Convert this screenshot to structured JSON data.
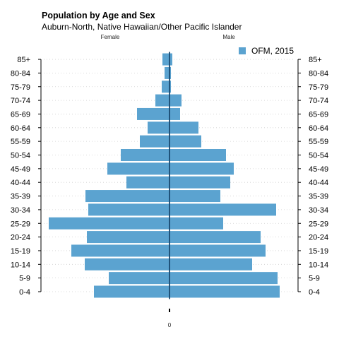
{
  "chart_data": {
    "type": "bar",
    "title": "Population by Age and Sex",
    "subtitle": "Auburn-North, Native Hawaiian/Other Pacific Islander",
    "left_side_label": "Female",
    "right_side_label": "Male",
    "zero_label": "0",
    "categories": [
      "0-4",
      "5-9",
      "10-14",
      "15-19",
      "20-24",
      "25-29",
      "30-34",
      "35-39",
      "40-44",
      "45-49",
      "50-54",
      "55-59",
      "60-64",
      "65-69",
      "70-74",
      "75-79",
      "80-84",
      "85+"
    ],
    "series": [
      {
        "name": "OFM, 2015",
        "female": [
          107,
          86,
          120,
          139,
          117,
          171,
          115,
          119,
          61,
          88,
          69,
          42,
          31,
          46,
          20,
          11,
          7,
          10
        ],
        "male": [
          156,
          153,
          117,
          136,
          129,
          76,
          151,
          72,
          86,
          91,
          80,
          45,
          41,
          15,
          17,
          2,
          2,
          4
        ]
      }
    ],
    "xlim": [
      -180,
      180
    ],
    "grid": false,
    "legend_position": "top-right",
    "bar_color": "#5BA3D0",
    "axis_color": "#1a4a70"
  }
}
